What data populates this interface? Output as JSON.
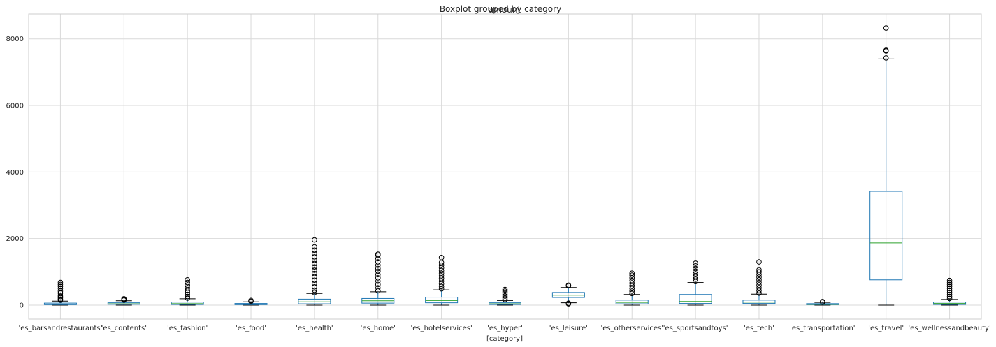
{
  "chart_data": {
    "type": "boxplot",
    "title": "Boxplot grouped by category",
    "subtitle": "amount",
    "xlabel": "[category]",
    "ylabel": "",
    "ylim": [
      -420,
      8750
    ],
    "yticks": [
      0,
      2000,
      4000,
      6000,
      8000
    ],
    "grid": true,
    "legend": "none",
    "colors": {
      "box": "#1f77b4",
      "median": "#2ca02c",
      "whisker": "#1f77b4",
      "cap": "#000000",
      "flier": "#000000",
      "grid": "#d9d9d9",
      "axis": "#cccccc"
    },
    "categories": [
      "'es_barsandrestaurants'",
      "'es_contents'",
      "'es_fashion'",
      "'es_food'",
      "'es_health'",
      "'es_home'",
      "'es_hotelservices'",
      "'es_hyper'",
      "'es_leisure'",
      "'es_otherservices'",
      "'es_sportsandtoys'",
      "'es_tech'",
      "'es_transportation'",
      "'es_travel'",
      "'es_wellnessandbeauty'"
    ],
    "boxes": [
      {
        "whislo": 0,
        "q1": 15,
        "med": 30,
        "q3": 60,
        "whishi": 120,
        "fliers": [
          150,
          180,
          220,
          260,
          300,
          360,
          420,
          500,
          560,
          620,
          680
        ]
      },
      {
        "whislo": 0,
        "q1": 25,
        "med": 40,
        "q3": 70,
        "whishi": 130,
        "fliers": [
          150,
          170,
          190
        ]
      },
      {
        "whislo": 0,
        "q1": 20,
        "med": 45,
        "q3": 90,
        "whishi": 190,
        "fliers": [
          210,
          260,
          320,
          380,
          440,
          520,
          600,
          680,
          760
        ]
      },
      {
        "whislo": 0,
        "q1": 15,
        "med": 30,
        "q3": 50,
        "whishi": 100,
        "fliers": [
          115,
          140
        ]
      },
      {
        "whislo": 0,
        "q1": 40,
        "med": 100,
        "q3": 180,
        "whishi": 350,
        "fliers": [
          380,
          450,
          550,
          650,
          750,
          850,
          950,
          1050,
          1150,
          1250,
          1350,
          1450,
          1550,
          1650,
          1750,
          1960
        ]
      },
      {
        "whislo": 0,
        "q1": 60,
        "med": 130,
        "q3": 200,
        "whishi": 400,
        "fliers": [
          430,
          520,
          620,
          720,
          820,
          920,
          1020,
          1100,
          1200,
          1300,
          1400,
          1500,
          1530
        ]
      },
      {
        "whislo": 0,
        "q1": 70,
        "med": 140,
        "q3": 240,
        "whishi": 460,
        "fliers": [
          490,
          560,
          640,
          720,
          800,
          880,
          960,
          1040,
          1120,
          1200,
          1280,
          1430
        ]
      },
      {
        "whislo": 0,
        "q1": 20,
        "med": 40,
        "q3": 70,
        "whishi": 140,
        "fliers": [
          170,
          220,
          270,
          320,
          370,
          420,
          470
        ]
      },
      {
        "whislo": 70,
        "q1": 230,
        "med": 300,
        "q3": 380,
        "whishi": 530,
        "fliers": [
          40,
          60,
          580,
          600
        ]
      },
      {
        "whislo": 0,
        "q1": 40,
        "med": 80,
        "q3": 150,
        "whishi": 320,
        "fliers": [
          350,
          420,
          500,
          580,
          660,
          740,
          820,
          900,
          960
        ]
      },
      {
        "whislo": 0,
        "q1": 50,
        "med": 110,
        "q3": 320,
        "whishi": 680,
        "fliers": [
          710,
          780,
          860,
          940,
          1020,
          1100,
          1180,
          1260
        ]
      },
      {
        "whislo": 0,
        "q1": 50,
        "med": 90,
        "q3": 150,
        "whishi": 330,
        "fliers": [
          360,
          440,
          520,
          600,
          680,
          760,
          840,
          920,
          1000,
          1060,
          1300
        ]
      },
      {
        "whislo": 0,
        "q1": 15,
        "med": 25,
        "q3": 45,
        "whishi": 80,
        "fliers": [
          90,
          105
        ]
      },
      {
        "whislo": 0,
        "q1": 760,
        "med": 1870,
        "q3": 3420,
        "whishi": 7400,
        "fliers": [
          7430,
          7640,
          7660,
          8330
        ]
      },
      {
        "whislo": 0,
        "q1": 20,
        "med": 50,
        "q3": 90,
        "whishi": 170,
        "fliers": [
          200,
          260,
          320,
          380,
          440,
          500,
          560,
          620,
          680,
          740
        ]
      }
    ]
  }
}
